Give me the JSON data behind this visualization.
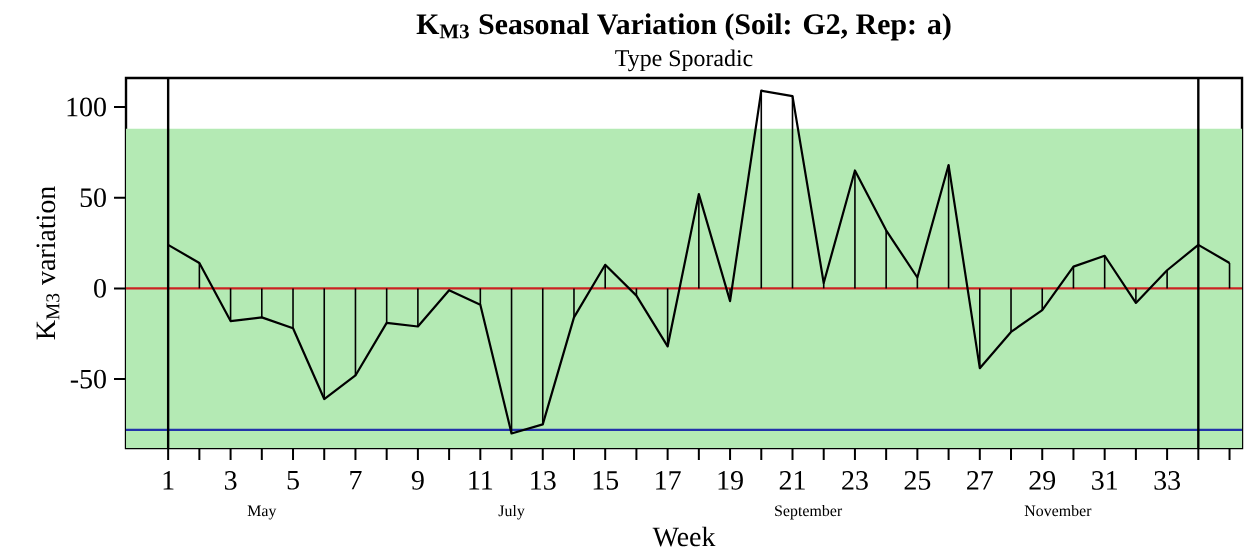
{
  "chart_data": {
    "type": "line",
    "title": "K$_{M3}$ Seasonal Variation (Soil: G2, Rep: a)",
    "subtitle": "Type Sporadic",
    "xlabel": "Week",
    "ylabel": "K$_{M3}$ variation",
    "x": [
      1,
      2,
      3,
      4,
      5,
      6,
      7,
      8,
      9,
      10,
      11,
      12,
      13,
      14,
      15,
      16,
      17,
      18,
      19,
      20,
      21,
      22,
      23,
      24,
      25,
      26,
      27,
      28,
      29,
      30,
      31,
      32,
      33,
      34,
      35
    ],
    "series": [
      {
        "color": "#000000",
        "values": [
          24,
          14,
          -18,
          -16,
          -22,
          -61,
          -48,
          -19,
          -21,
          -1,
          -9,
          -80,
          -75,
          -16,
          13,
          -4,
          -32,
          52,
          -7,
          109,
          106,
          3,
          65,
          32,
          6,
          68,
          -44,
          -24,
          -12,
          12,
          18,
          -8,
          10,
          24,
          14
        ]
      },
      {
        "type": "bar",
        "color": "#000000",
        "values": [
          null,
          14,
          -18,
          -16,
          -22,
          -61,
          -48,
          -19,
          -21,
          null,
          -9,
          -80,
          -75,
          -16,
          13,
          -4,
          -32,
          52,
          -7,
          109,
          106,
          3,
          65,
          32,
          6,
          68,
          -44,
          -24,
          -12,
          12,
          18,
          -8,
          10,
          null,
          14
        ]
      }
    ],
    "marker": "none",
    "xlim": [
      -0.35,
      35.4
    ],
    "ylim": [
      -88,
      116
    ],
    "xticks": [
      1,
      {
        "value": 2,
        "label": null
      },
      3,
      {
        "value": 4,
        "label": null
      },
      5,
      {
        "value": 6,
        "label": null
      },
      7,
      {
        "value": 8,
        "label": null
      },
      9,
      {
        "value": 10,
        "label": null
      },
      11,
      {
        "value": 12,
        "label": null
      },
      13,
      {
        "value": 14,
        "label": null
      },
      15,
      {
        "value": 16,
        "label": null
      },
      17,
      {
        "value": 18,
        "label": null
      },
      19,
      {
        "value": 20,
        "label": null
      },
      21,
      {
        "value": 22,
        "label": null
      },
      23,
      {
        "value": 24,
        "label": null
      },
      25,
      {
        "value": 26,
        "label": null
      },
      27,
      {
        "value": 28,
        "label": null
      },
      29,
      {
        "value": 30,
        "label": null
      },
      31,
      {
        "value": 32,
        "label": null
      },
      33,
      {
        "value": 34,
        "label": null
      },
      {
        "value": 35,
        "label": null
      }
    ],
    "yticks": [
      -50,
      0,
      50,
      100
    ],
    "annotations": [
      "May",
      "July",
      "September",
      "November"
    ],
    "bands": [
      {
        "axis": "y",
        "from": -88,
        "to": 88,
        "color": "#b4eab4"
      }
    ],
    "ref_lines": [
      {
        "axis": "y",
        "value": 0,
        "color": "#cc2222"
      },
      {
        "axis": "y",
        "value": -78,
        "color": "#2233aa"
      },
      {
        "axis": "x",
        "value": 1,
        "color": "#000000"
      },
      {
        "axis": "x",
        "value": 34,
        "color": "#000000"
      }
    ],
    "grid": false,
    "legend": false
  }
}
